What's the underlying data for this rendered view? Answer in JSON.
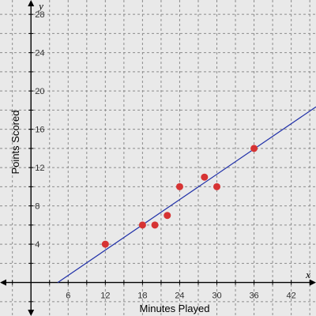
{
  "chart_data": {
    "type": "scatter",
    "title": "",
    "xlabel": "Minutes Played",
    "ylabel": "Points Scored",
    "x_var": "x",
    "y_var": "y",
    "xlim": [
      -5,
      46
    ],
    "ylim": [
      -3.5,
      29.5
    ],
    "x_ticks": [
      6,
      12,
      18,
      24,
      30,
      36,
      42
    ],
    "y_ticks": [
      4,
      8,
      12,
      16,
      20,
      24,
      28
    ],
    "x_grid_step": 3,
    "y_grid_step": 2,
    "grid": true,
    "points": [
      {
        "x": 12,
        "y": 4
      },
      {
        "x": 18,
        "y": 6
      },
      {
        "x": 20,
        "y": 6
      },
      {
        "x": 22,
        "y": 7
      },
      {
        "x": 24,
        "y": 10
      },
      {
        "x": 28,
        "y": 11
      },
      {
        "x": 30,
        "y": 10
      },
      {
        "x": 36,
        "y": 14
      }
    ],
    "trend_line": {
      "slope": 0.44,
      "intercept": -1.9
    },
    "colors": {
      "points": "#d63333",
      "trend_line": "#1f2fa8",
      "grid": "#8c8c8c",
      "background": "#e9e9e9"
    }
  }
}
